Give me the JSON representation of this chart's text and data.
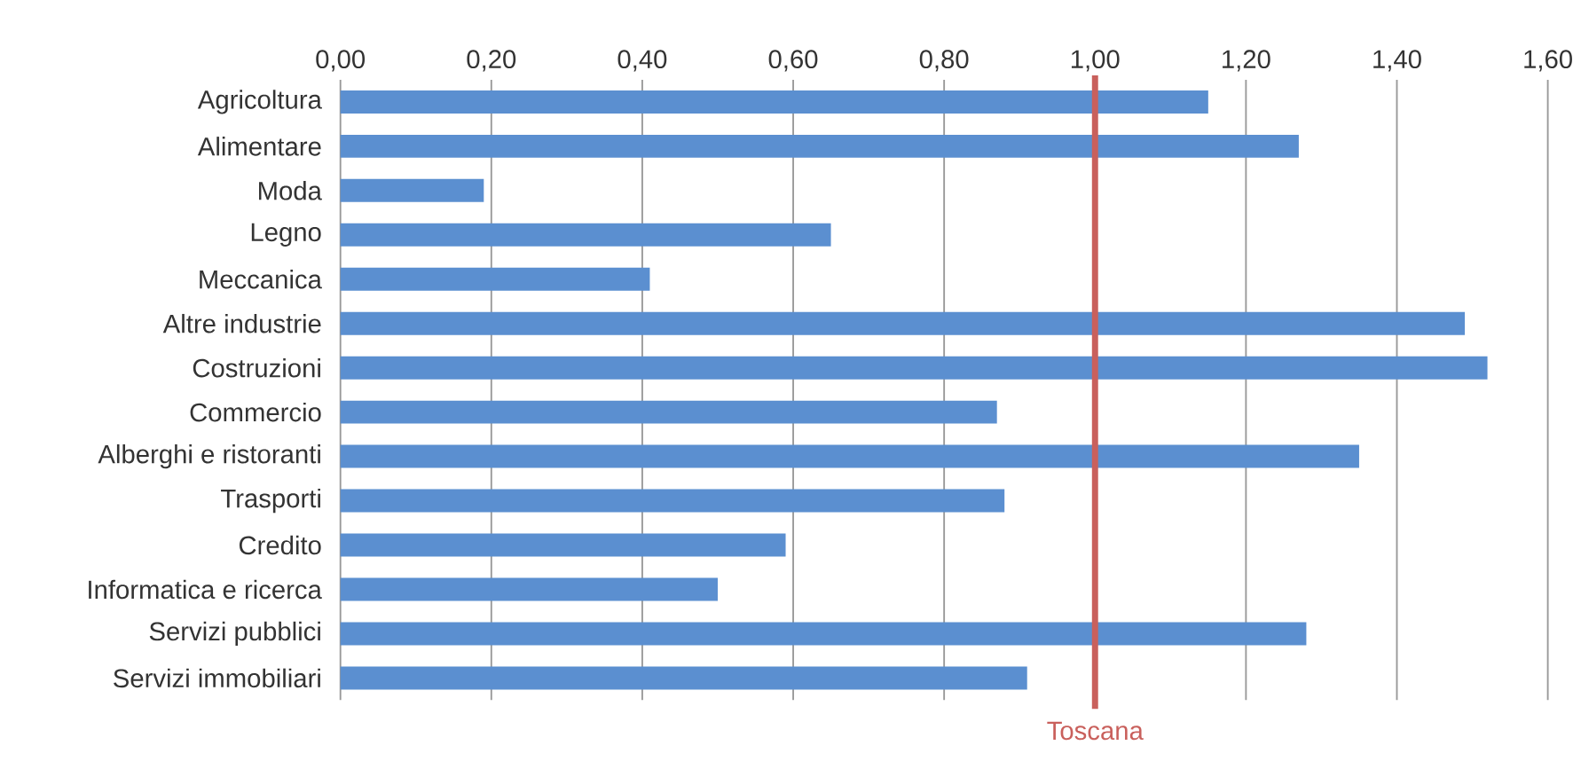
{
  "chart_data": {
    "type": "bar",
    "orientation": "horizontal",
    "categories": [
      "Agricoltura",
      "Alimentare",
      "Moda",
      "Legno",
      "Meccanica",
      "Altre industrie",
      "Costruzioni",
      "Commercio",
      "Alberghi e ristoranti",
      "Trasporti",
      "Credito",
      "Informatica e ricerca",
      "Servizi pubblici",
      "Servizi immobiliari"
    ],
    "values": [
      1.15,
      1.27,
      0.19,
      0.65,
      0.41,
      1.49,
      1.52,
      0.87,
      1.35,
      0.88,
      0.59,
      0.5,
      1.28,
      0.91
    ],
    "color": "#5b8fd0",
    "xlim": [
      0,
      1.6
    ],
    "xticks": [
      {
        "value": 0,
        "label": "0,00"
      },
      {
        "value": 0.2,
        "label": "0,20"
      },
      {
        "value": 0.4,
        "label": "0,40"
      },
      {
        "value": 0.6,
        "label": "0,60"
      },
      {
        "value": 0.8,
        "label": "0,80"
      },
      {
        "value": 1.0,
        "label": "1,00"
      },
      {
        "value": 1.2,
        "label": "1,20"
      },
      {
        "value": 1.4,
        "label": "1,40"
      },
      {
        "value": 1.6,
        "label": "1,60"
      }
    ],
    "grid": "x",
    "ref_lines": [
      {
        "axis": "x",
        "value": 1.0,
        "label": "Toscana",
        "color": "#c9605c"
      }
    ]
  }
}
